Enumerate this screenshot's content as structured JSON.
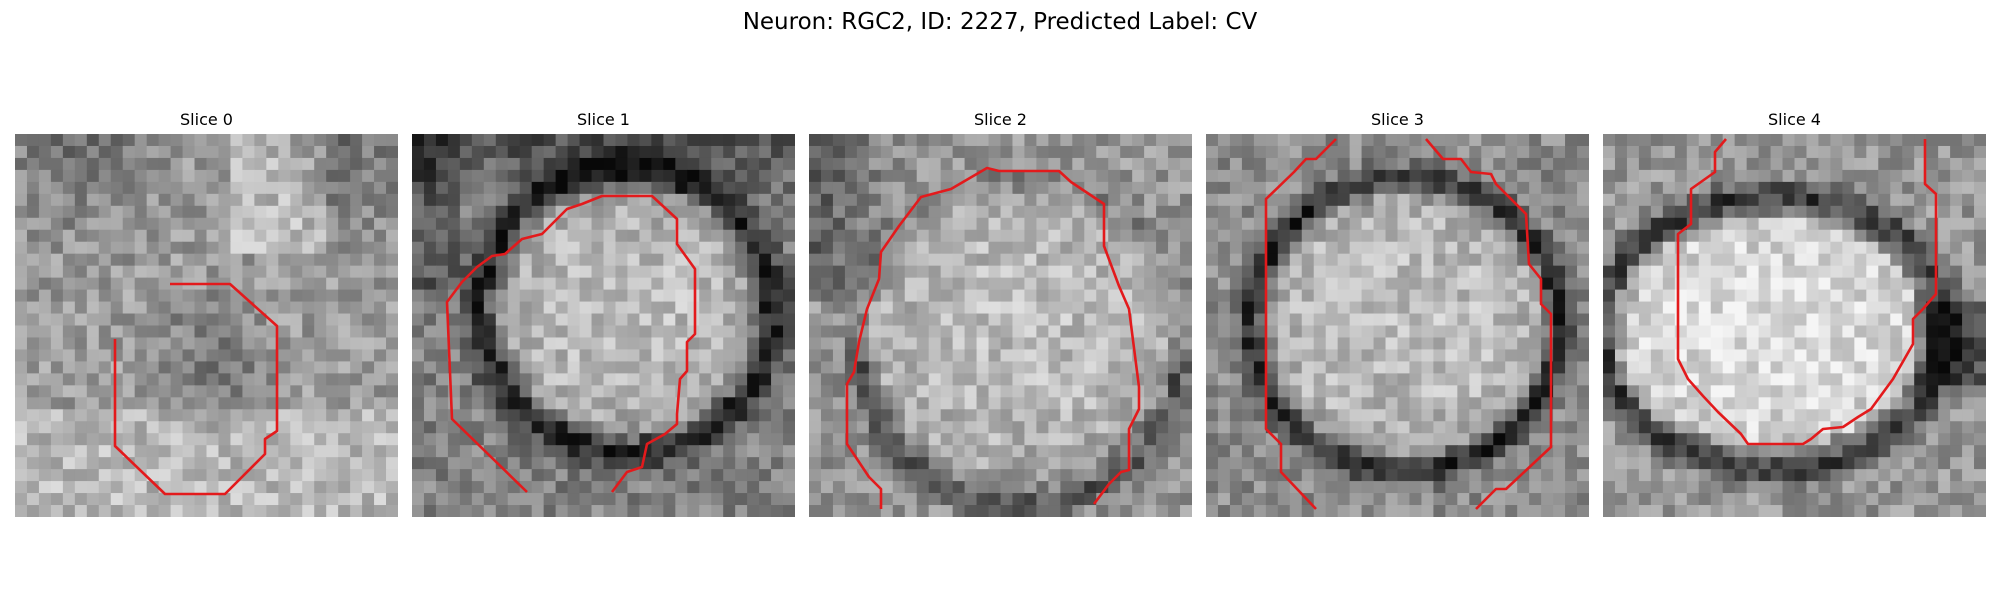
{
  "figure": {
    "title": "Neuron: RGC2, ID: 2227, Predicted Label: CV",
    "contour_color": "#e31a1c",
    "colormap": "gray"
  },
  "panels": [
    {
      "title": "Slice 0",
      "scene": "small-dark-blob"
    },
    {
      "title": "Slice 1",
      "scene": "bright-cell-dark-ring"
    },
    {
      "title": "Slice 2",
      "scene": "large-cell-bottom-ring"
    },
    {
      "title": "Slice 3",
      "scene": "cell-center-dark-ring"
    },
    {
      "title": "Slice 4",
      "scene": "bright-ellipse-dark-ring"
    }
  ]
}
